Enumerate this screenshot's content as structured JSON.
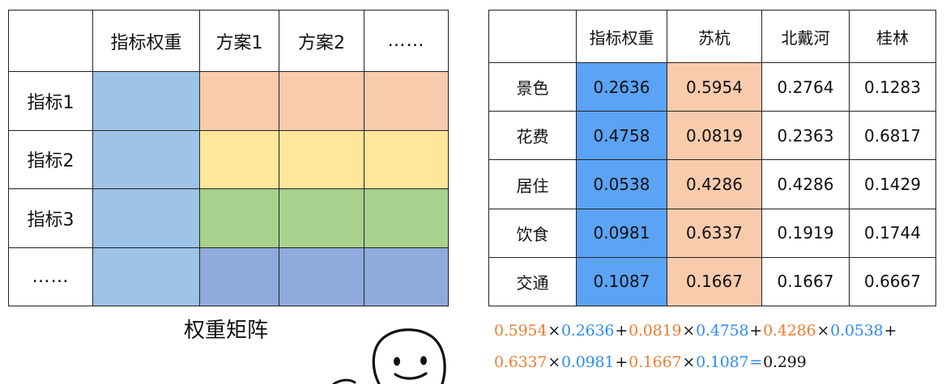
{
  "matrix": {
    "header": [
      "",
      "指标权重",
      "方案1",
      "方案2",
      "……"
    ],
    "rows": [
      {
        "label": "指标1",
        "fills": [
          "#9dc3e6",
          "#f8cbad",
          "#f8cbad",
          "#f8cbad"
        ]
      },
      {
        "label": "指标2",
        "fills": [
          "#9dc3e6",
          "#ffe699",
          "#ffe699",
          "#ffe699"
        ]
      },
      {
        "label": "指标3",
        "fills": [
          "#9dc3e6",
          "#a9d18e",
          "#a9d18e",
          "#a9d18e"
        ]
      },
      {
        "label": "……",
        "fills": [
          "#9dc3e6",
          "#8faadc",
          "#8faadc",
          "#8faadc"
        ]
      }
    ],
    "caption": "权重矩阵"
  },
  "data_table": {
    "header": [
      "",
      "指标权重",
      "苏杭",
      "北戴河",
      "桂林"
    ],
    "rows": [
      {
        "label": "景色",
        "values": [
          "0.2636",
          "0.5954",
          "0.2764",
          "0.1283"
        ]
      },
      {
        "label": "花费",
        "values": [
          "0.4758",
          "0.0819",
          "0.2363",
          "0.6817"
        ]
      },
      {
        "label": "居住",
        "values": [
          "0.0538",
          "0.4286",
          "0.4286",
          "0.1429"
        ]
      },
      {
        "label": "饮食",
        "values": [
          "0.0981",
          "0.6337",
          "0.1919",
          "0.1744"
        ]
      },
      {
        "label": "交通",
        "values": [
          "0.1087",
          "0.1667",
          "0.1667",
          "0.6667"
        ]
      }
    ],
    "highlight_colors": {
      "weight": "#5ba3f5",
      "suhang": "#f8cbad"
    }
  },
  "formula": {
    "line1": [
      {
        "t": "0.5954",
        "c": "#ed7d31"
      },
      {
        "t": "×",
        "c": "#111111"
      },
      {
        "t": "0.2636",
        "c": "#2e8bf0"
      },
      {
        "t": "+",
        "c": "#111111"
      },
      {
        "t": "0.0819",
        "c": "#ed7d31"
      },
      {
        "t": "×",
        "c": "#111111"
      },
      {
        "t": "0.4758",
        "c": "#2e8bf0"
      },
      {
        "t": "+",
        "c": "#111111"
      },
      {
        "t": "0.4286",
        "c": "#ed7d31"
      },
      {
        "t": "×",
        "c": "#111111"
      },
      {
        "t": "0.0538",
        "c": "#2e8bf0"
      },
      {
        "t": "+",
        "c": "#111111"
      }
    ],
    "line2": [
      {
        "t": "0.6337",
        "c": "#ed7d31"
      },
      {
        "t": "×",
        "c": "#111111"
      },
      {
        "t": "0.0981",
        "c": "#2e8bf0"
      },
      {
        "t": "+",
        "c": "#111111"
      },
      {
        "t": "0.1667",
        "c": "#ed7d31"
      },
      {
        "t": "×",
        "c": "#111111"
      },
      {
        "t": "0.1087",
        "c": "#2e8bf0"
      },
      {
        "t": "=",
        "c": "#2e8bf0"
      },
      {
        "t": "0.299",
        "c": "#111111"
      }
    ]
  }
}
